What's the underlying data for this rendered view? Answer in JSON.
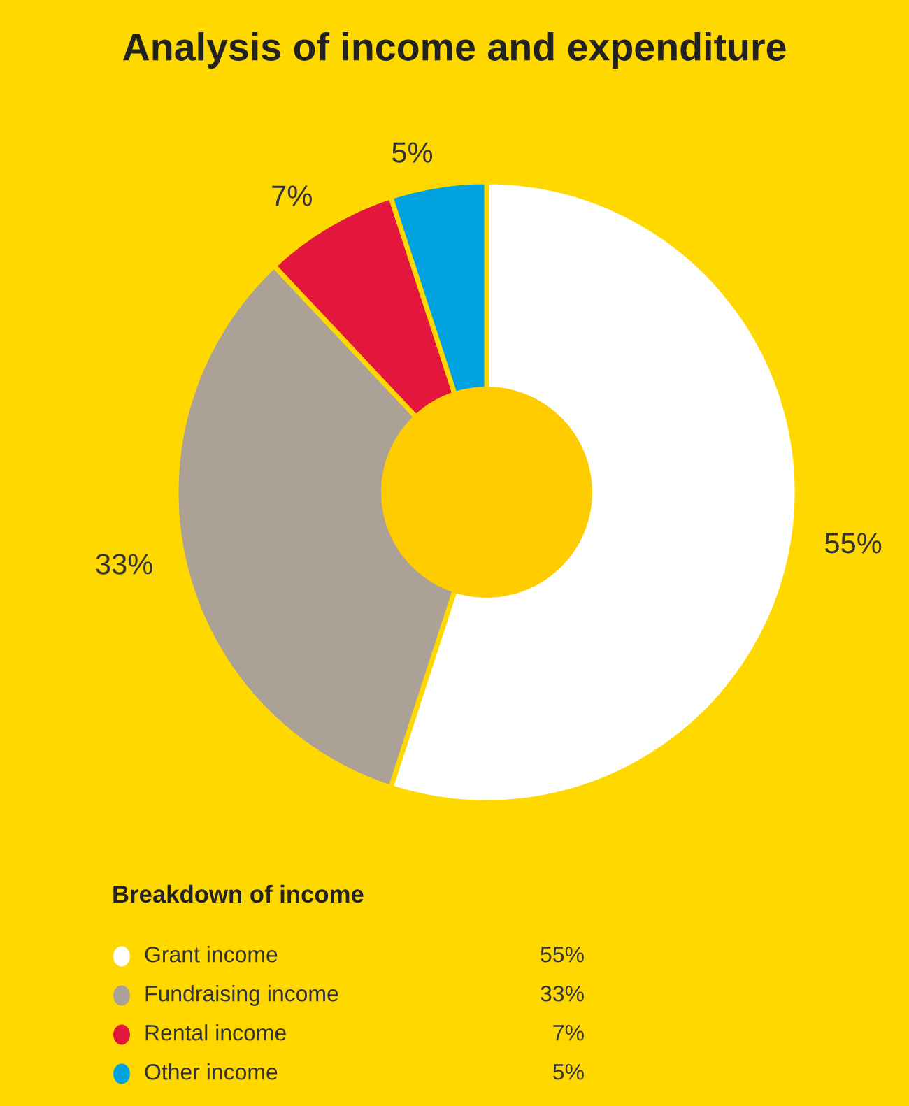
{
  "chart_data": {
    "type": "donut",
    "title": "Analysis of income and expenditure",
    "legend_title": "Breakdown of income",
    "categories": [
      "Grant income",
      "Fundraising income",
      "Rental income",
      "Other income"
    ],
    "values": [
      55,
      33,
      7,
      5
    ],
    "colors": [
      "#ffffff",
      "#aba197",
      "#e3173e",
      "#00a3e0"
    ],
    "value_labels": [
      "55%",
      "33%",
      "7%",
      "5%"
    ],
    "legend": "bottom left"
  }
}
